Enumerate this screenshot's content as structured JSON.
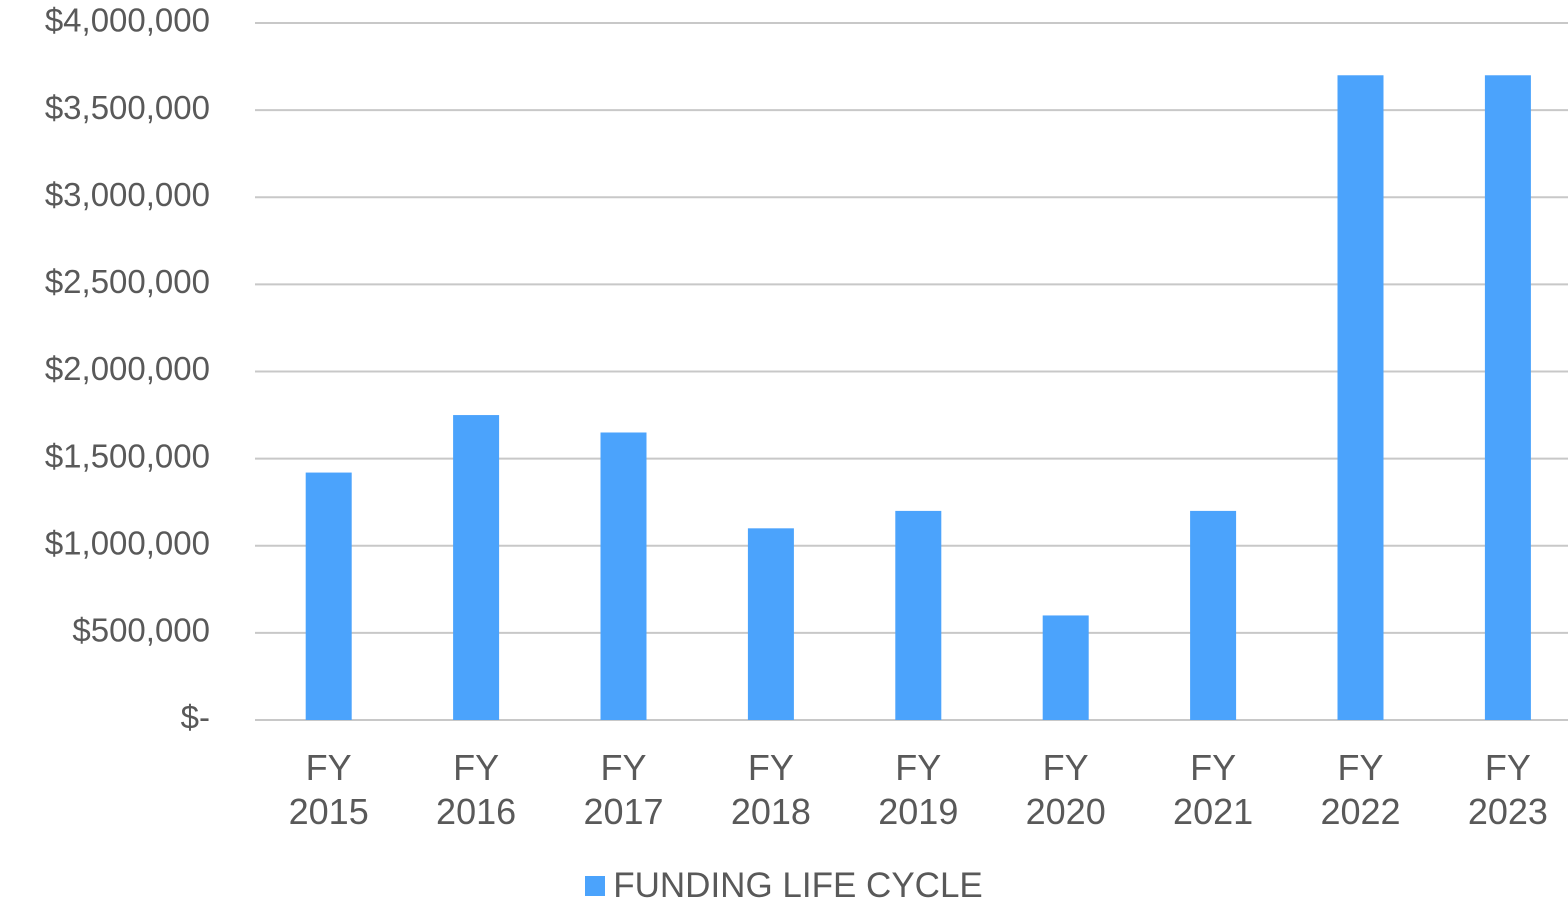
{
  "chart_data": {
    "type": "bar",
    "categories": [
      "FY 2015",
      "FY 2016",
      "FY 2017",
      "FY 2018",
      "FY 2019",
      "FY 2020",
      "FY 2021",
      "FY 2022",
      "FY 2023"
    ],
    "series": [
      {
        "name": "FUNDING LIFE CYCLE",
        "color": "#4ba3fc",
        "values": [
          1420000,
          1750000,
          1650000,
          1100000,
          1200000,
          600000,
          1200000,
          3700000,
          3700000
        ]
      }
    ],
    "ylim": [
      0,
      4000000
    ],
    "yticks": [
      {
        "value": 0,
        "label": "$-"
      },
      {
        "value": 500000,
        "label": "$500,000"
      },
      {
        "value": 1000000,
        "label": "$1,000,000"
      },
      {
        "value": 1500000,
        "label": "$1,500,000"
      },
      {
        "value": 2000000,
        "label": "$2,000,000"
      },
      {
        "value": 2500000,
        "label": "$2,500,000"
      },
      {
        "value": 3000000,
        "label": "$3,000,000"
      },
      {
        "value": 3500000,
        "label": "$3,500,000"
      },
      {
        "value": 4000000,
        "label": "$4,000,000"
      }
    ],
    "grid": true,
    "legend": "bottom"
  }
}
